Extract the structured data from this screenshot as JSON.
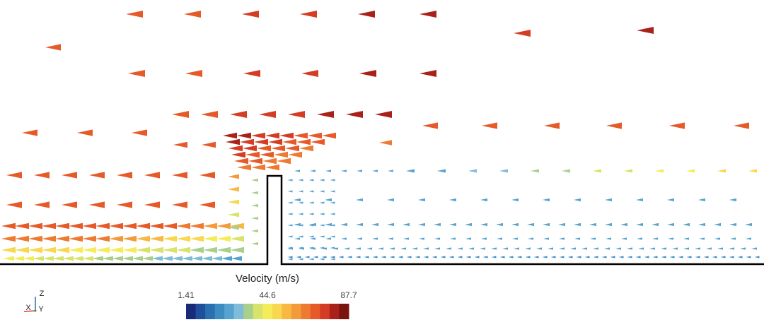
{
  "colorbar": {
    "title": "Velocity (m/s)",
    "range": [
      1.41,
      87.7
    ],
    "ticks": [
      1.41,
      44.6,
      87.7
    ],
    "colors": [
      "#1a2a7a",
      "#1f4e9a",
      "#2a6fb0",
      "#3c8cc2",
      "#56a3cf",
      "#7fbcd9",
      "#a8d08a",
      "#d7e36a",
      "#f5ec5a",
      "#f8d84e",
      "#f7b944",
      "#f39a3b",
      "#ee7a32",
      "#e65a2a",
      "#d43c24",
      "#a8221a",
      "#7a1410"
    ]
  },
  "triad": {
    "labels": [
      "Z",
      "X",
      "Y"
    ]
  }
}
